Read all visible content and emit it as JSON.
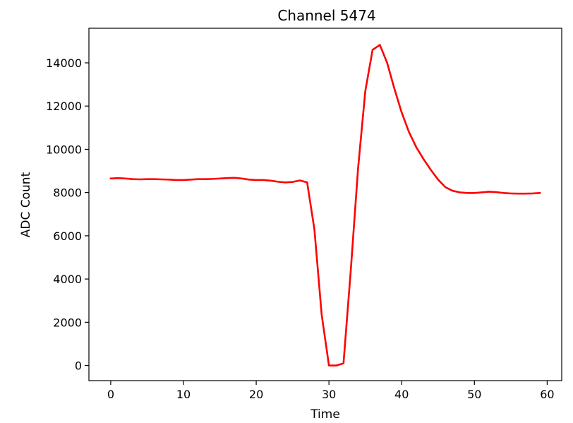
{
  "chart_data": {
    "type": "line",
    "title": "Channel 5474",
    "xlabel": "Time",
    "ylabel": "ADC Count",
    "xlim": [
      -3,
      62
    ],
    "ylim": [
      -700,
      15600
    ],
    "xticks": [
      0,
      10,
      20,
      30,
      40,
      50,
      60
    ],
    "xtick_labels": [
      "0",
      "10",
      "20",
      "30",
      "40",
      "50",
      "60"
    ],
    "yticks": [
      0,
      2000,
      4000,
      6000,
      8000,
      10000,
      12000,
      14000
    ],
    "ytick_labels": [
      "0",
      "2000",
      "4000",
      "6000",
      "8000",
      "10000",
      "12000",
      "14000"
    ],
    "grid": false,
    "series": [
      {
        "color": "#ff0000",
        "x": [
          0,
          1,
          2,
          3,
          4,
          5,
          6,
          7,
          8,
          9,
          10,
          11,
          12,
          13,
          14,
          15,
          16,
          17,
          18,
          19,
          20,
          21,
          22,
          23,
          24,
          25,
          26,
          27,
          28,
          29,
          30,
          31,
          32,
          33,
          34,
          35,
          36,
          37,
          38,
          39,
          40,
          41,
          42,
          43,
          44,
          45,
          46,
          47,
          48,
          49,
          50,
          51,
          52,
          53,
          54,
          55,
          56,
          57,
          58,
          59
        ],
        "y": [
          8650,
          8670,
          8650,
          8620,
          8610,
          8620,
          8620,
          8610,
          8600,
          8580,
          8580,
          8600,
          8620,
          8620,
          8630,
          8650,
          8670,
          8680,
          8650,
          8600,
          8580,
          8580,
          8550,
          8500,
          8470,
          8490,
          8560,
          8470,
          6300,
          2350,
          0,
          0,
          100,
          4400,
          9100,
          12700,
          14600,
          14830,
          14000,
          12800,
          11700,
          10800,
          10100,
          9550,
          9050,
          8600,
          8250,
          8080,
          8010,
          7980,
          7980,
          8010,
          8040,
          8020,
          7980,
          7960,
          7950,
          7950,
          7960,
          7980
        ]
      }
    ]
  }
}
